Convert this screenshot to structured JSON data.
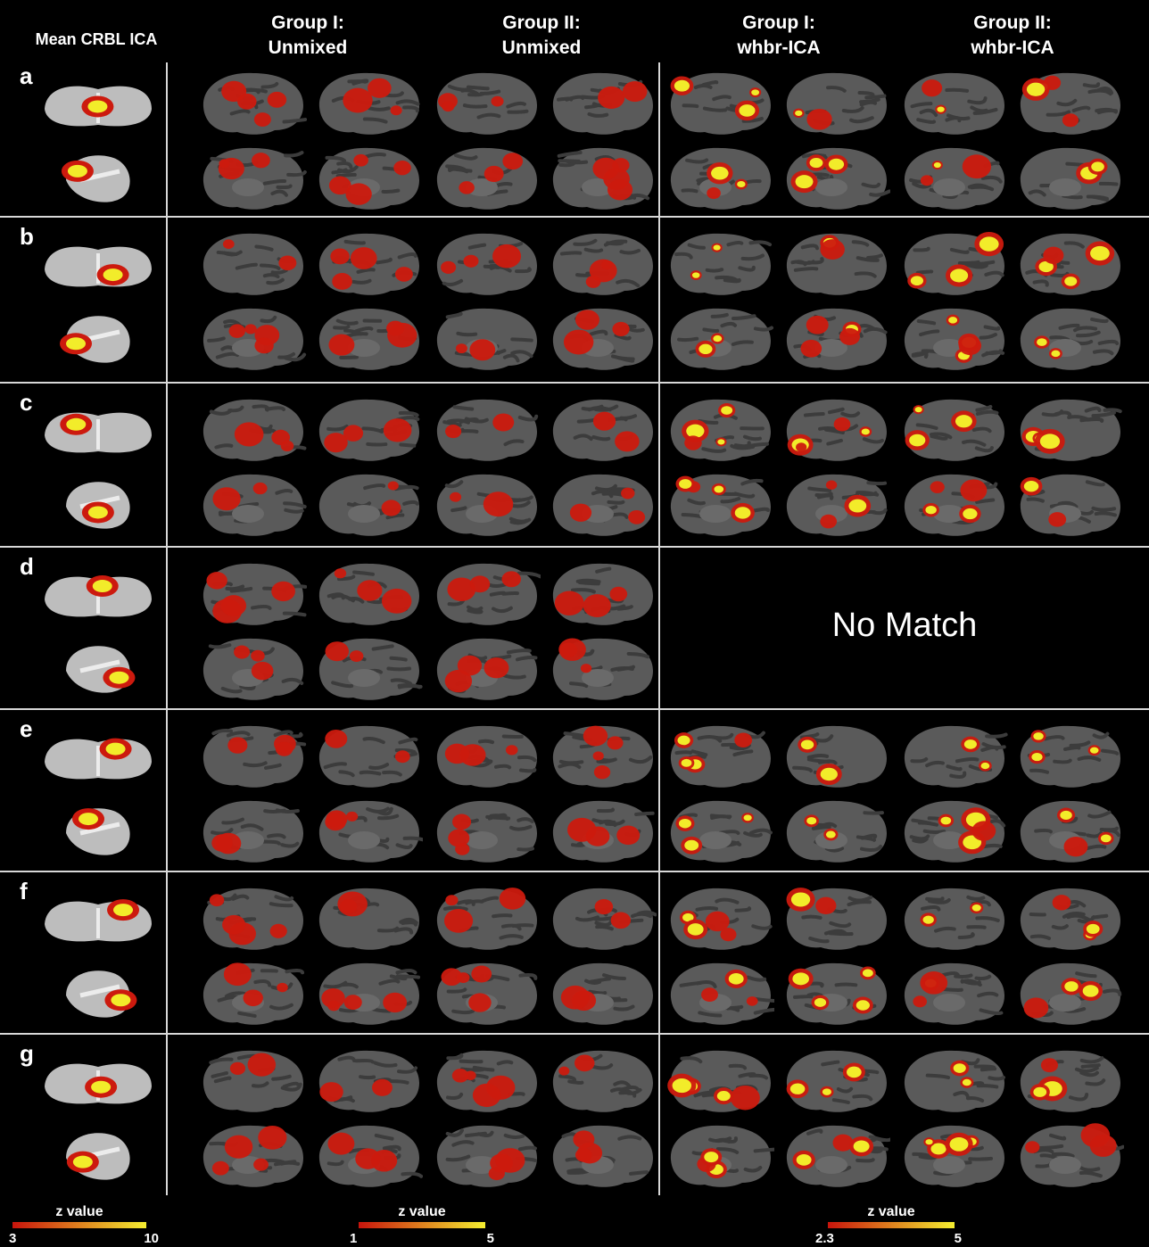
{
  "figure": {
    "mean_header": "Mean CRBL ICA",
    "columns": [
      {
        "line1": "Group I:",
        "line2": "Unmixed"
      },
      {
        "line1": "Group II:",
        "line2": "Unmixed"
      },
      {
        "line1": "Group I:",
        "line2": "whbr-ICA"
      },
      {
        "line1": "Group II:",
        "line2": "whbr-ICA"
      }
    ],
    "rows": [
      {
        "letter": "a",
        "no_match": ""
      },
      {
        "letter": "b",
        "no_match": ""
      },
      {
        "letter": "c",
        "no_match": ""
      },
      {
        "letter": "d",
        "no_match": "No Match"
      },
      {
        "letter": "e",
        "no_match": ""
      },
      {
        "letter": "f",
        "no_match": ""
      },
      {
        "letter": "g",
        "no_match": ""
      }
    ],
    "colorbars": [
      {
        "label": "z value",
        "min": "3",
        "max": "10"
      },
      {
        "label": "z value",
        "min": "1",
        "max": "5"
      },
      {
        "label": "z value",
        "min": "2.3",
        "max": "5"
      }
    ],
    "colors": {
      "background": "#000000",
      "brain": "#5a5a5a",
      "sulci": "#3c3c3c",
      "low": "#cc1a0e",
      "high": "#f2ec2a",
      "divider": "#d8d8d8"
    }
  }
}
